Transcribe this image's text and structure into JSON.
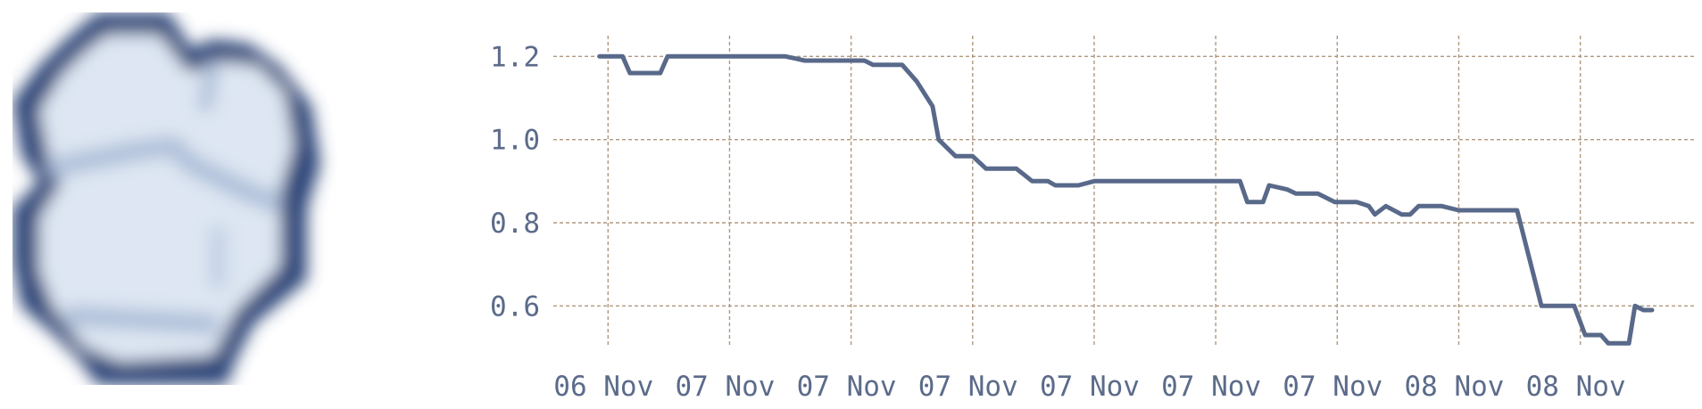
{
  "app_icon": {
    "name": "cloud-icon",
    "color": "#2d4679"
  },
  "chart_data": {
    "type": "line",
    "title": "",
    "xlabel": "",
    "ylabel": "",
    "ylim": [
      0.5,
      1.25
    ],
    "yticks": [
      0.6,
      0.8,
      1.0,
      1.2
    ],
    "ytick_labels": [
      "0.6",
      "0.8",
      "1.0",
      "1.2"
    ],
    "xticks": [
      0,
      1,
      2,
      3,
      4,
      5,
      6,
      7,
      8
    ],
    "xtick_labels": [
      "06 Nov",
      "07 Nov",
      "07 Nov",
      "07 Nov",
      "07 Nov",
      "07 Nov",
      "07 Nov",
      "08 Nov",
      "08 Nov"
    ],
    "xlim": [
      -0.45,
      8.95
    ],
    "grid": true,
    "line_color": "#59698a",
    "grid_color": "#b09880",
    "x": [
      -0.07,
      0.12,
      0.18,
      0.43,
      0.49,
      0.62,
      0.78,
      1.0,
      1.46,
      1.62,
      1.86,
      2.11,
      2.18,
      2.42,
      2.54,
      2.67,
      2.72,
      2.86,
      3.0,
      3.11,
      3.26,
      3.36,
      3.49,
      3.62,
      3.68,
      3.87,
      4.0,
      4.5,
      5.0,
      5.2,
      5.26,
      5.39,
      5.44,
      5.59,
      5.66,
      5.84,
      5.98,
      6.08,
      6.16,
      6.26,
      6.31,
      6.4,
      6.53,
      6.6,
      6.67,
      6.86,
      7.0,
      7.48,
      7.68,
      7.71,
      7.85,
      7.95,
      8.04,
      8.08,
      8.17,
      8.23,
      8.32,
      8.4,
      8.45,
      8.52,
      8.59
    ],
    "y": [
      1.2,
      1.2,
      1.16,
      1.16,
      1.2,
      1.2,
      1.2,
      1.2,
      1.2,
      1.19,
      1.19,
      1.19,
      1.18,
      1.18,
      1.14,
      1.08,
      1.0,
      0.96,
      0.96,
      0.93,
      0.93,
      0.93,
      0.9,
      0.9,
      0.89,
      0.89,
      0.9,
      0.9,
      0.9,
      0.9,
      0.85,
      0.85,
      0.89,
      0.88,
      0.87,
      0.87,
      0.85,
      0.85,
      0.85,
      0.84,
      0.82,
      0.84,
      0.82,
      0.82,
      0.84,
      0.84,
      0.83,
      0.83,
      0.6,
      0.6,
      0.6,
      0.6,
      0.53,
      0.53,
      0.53,
      0.51,
      0.51,
      0.51,
      0.6,
      0.59,
      0.59
    ]
  }
}
